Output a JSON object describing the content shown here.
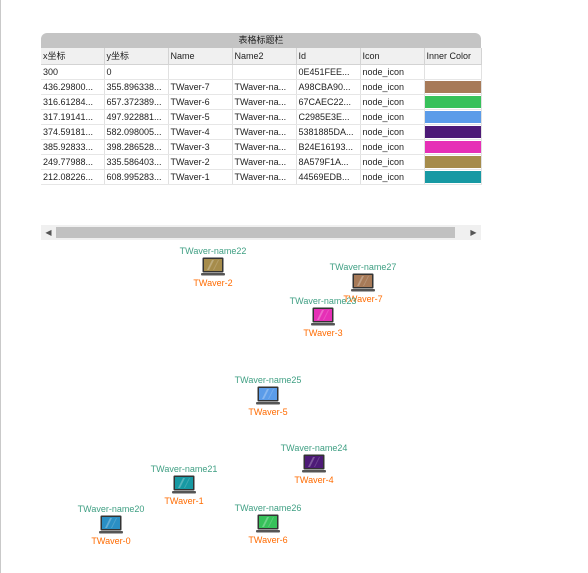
{
  "table": {
    "title": "表格标题栏",
    "columns": [
      "x坐标",
      "y坐标",
      "Name",
      "Name2",
      "Id",
      "Icon",
      "Inner Color"
    ],
    "rows": [
      {
        "x": "300",
        "y": "0",
        "name": "",
        "name2": "",
        "id": "0E451FEE...",
        "icon": "",
        "color": ""
      },
      {
        "x": "436.29800...",
        "y": "355.896338...",
        "name": "TWaver-7",
        "name2": "TWaver-na...",
        "id": "A98CBA90...",
        "icon": "node_icon",
        "color": "#a77a58"
      },
      {
        "x": "316.61284...",
        "y": "657.372389...",
        "name": "TWaver-6",
        "name2": "TWaver-na...",
        "id": "67CAEC22...",
        "icon": "node_icon",
        "color": "#37c15a"
      },
      {
        "x": "317.19141...",
        "y": "497.922881...",
        "name": "TWaver-5",
        "name2": "TWaver-na...",
        "id": "C2985E3E...",
        "icon": "node_icon",
        "color": "#5b9ce9"
      },
      {
        "x": "374.59181...",
        "y": "582.098005...",
        "name": "TWaver-4",
        "name2": "TWaver-na...",
        "id": "5381885DA...",
        "icon": "node_icon",
        "color": "#4d1a77"
      },
      {
        "x": "385.92833...",
        "y": "398.286528...",
        "name": "TWaver-3",
        "name2": "TWaver-na...",
        "id": "B24E16193...",
        "icon": "node_icon",
        "color": "#e62fb6"
      },
      {
        "x": "249.77988...",
        "y": "335.586403...",
        "name": "TWaver-2",
        "name2": "TWaver-na...",
        "id": "8A579F1A...",
        "icon": "node_icon",
        "color": "#a68c4b"
      },
      {
        "x": "212.08226...",
        "y": "608.995283...",
        "name": "TWaver-1",
        "name2": "TWaver-na...",
        "id": "44569EDB...",
        "icon": "node_icon",
        "color": "#1799a3"
      }
    ],
    "first_row_icon": "node_icon"
  },
  "nodes": [
    {
      "id": "n2",
      "name": "TWaver-2",
      "name2": "TWaver-name22",
      "color": "#a68c4b"
    },
    {
      "id": "n7",
      "name": "TWaver-7",
      "name2": "TWaver-name27",
      "color": "#a77a58"
    },
    {
      "id": "n3",
      "name": "TWaver-3",
      "name2": "TWaver-name23",
      "color": "#e62fb6"
    },
    {
      "id": "n5",
      "name": "TWaver-5",
      "name2": "TWaver-name25",
      "color": "#5b9ce9"
    },
    {
      "id": "n4",
      "name": "TWaver-4",
      "name2": "TWaver-name24",
      "color": "#4d1a77"
    },
    {
      "id": "n1",
      "name": "TWaver-1",
      "name2": "TWaver-name21",
      "color": "#1799a3"
    },
    {
      "id": "n6",
      "name": "TWaver-6",
      "name2": "TWaver-name26",
      "color": "#37c15a"
    },
    {
      "id": "n0",
      "name": "TWaver-0",
      "name2": "TWaver-name20",
      "color": "#2a8fc4"
    }
  ]
}
